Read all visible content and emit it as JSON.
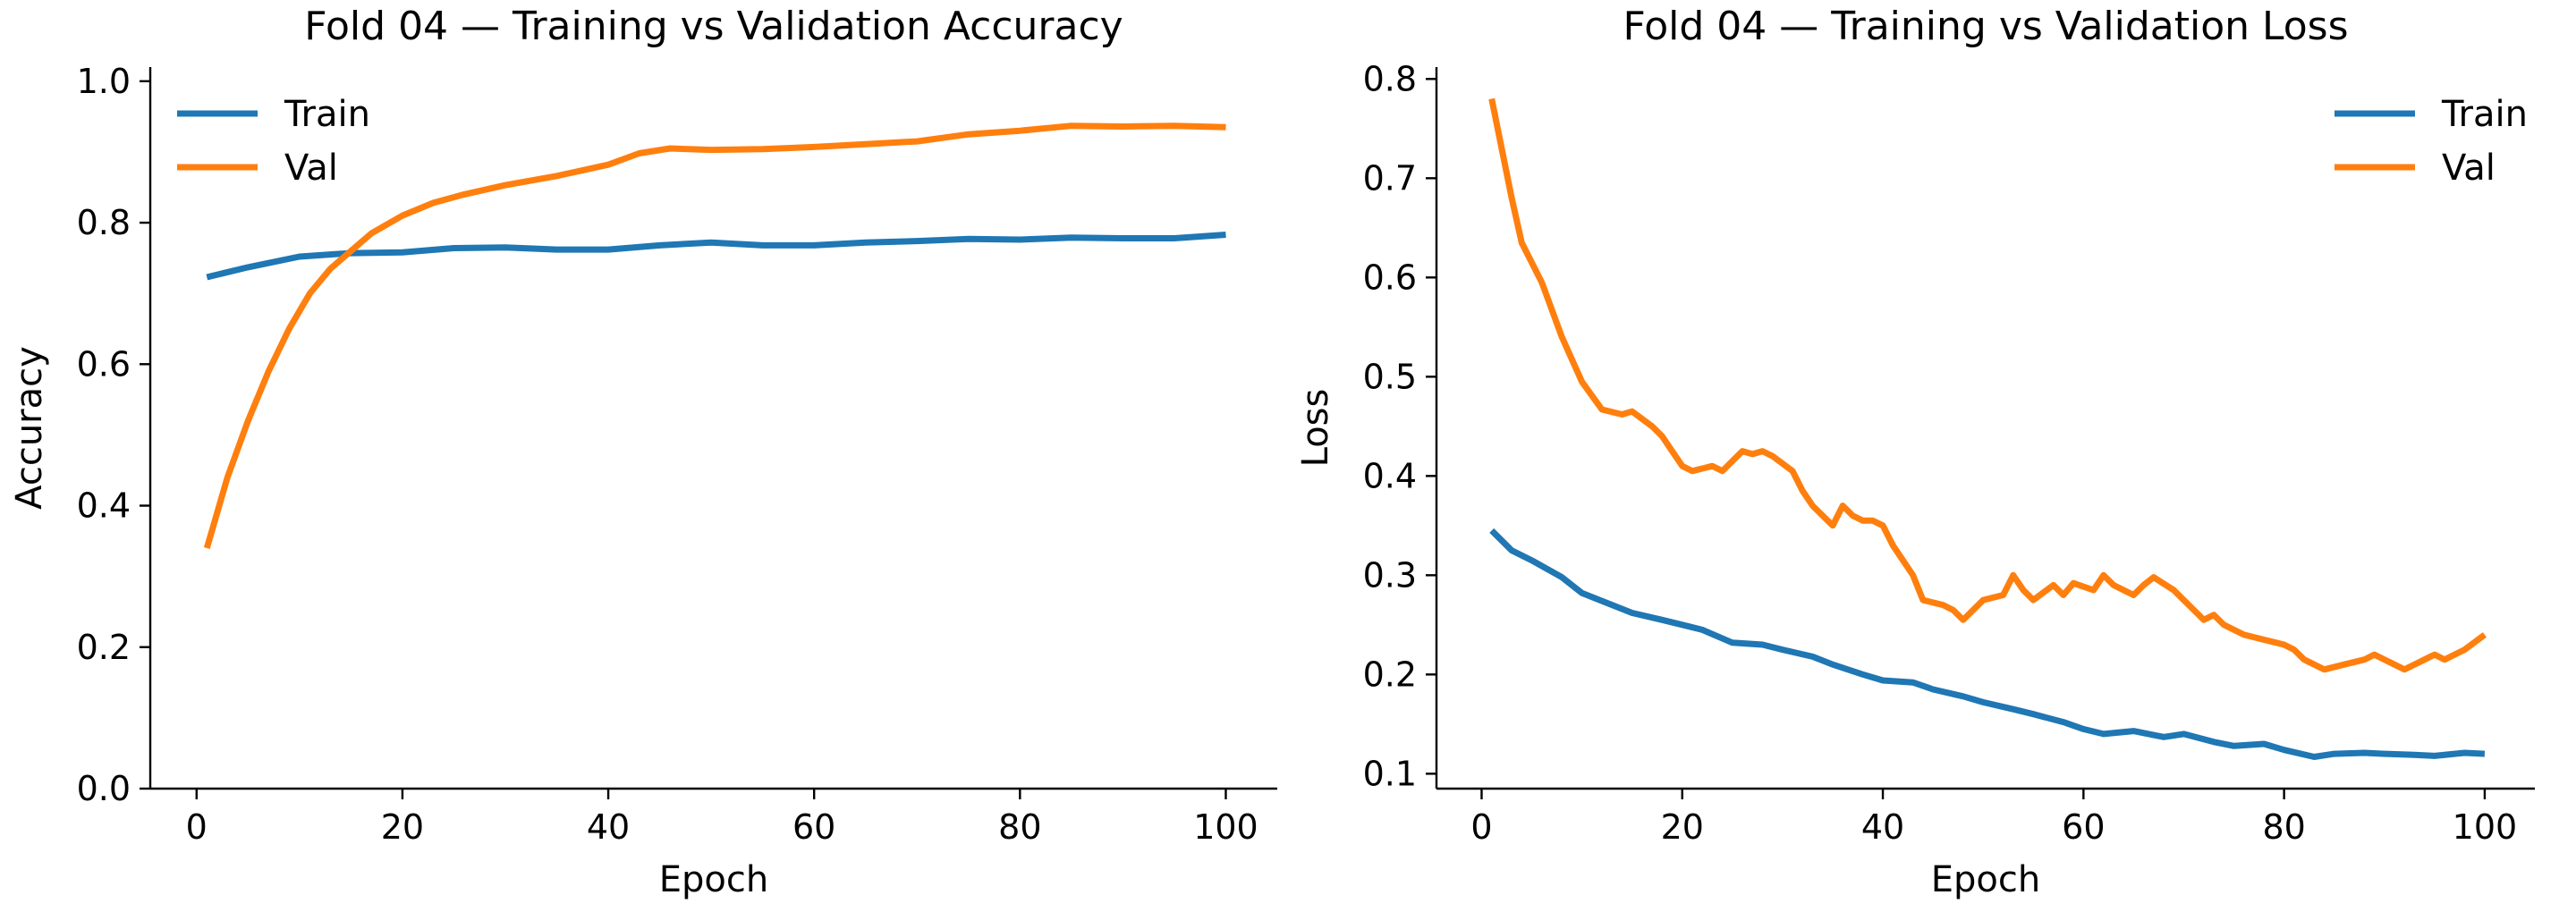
{
  "chart_data": [
    {
      "type": "line",
      "title": "Fold 04 — Training vs Validation Accuracy",
      "xlabel": "Epoch",
      "ylabel": "Accuracy",
      "xlim": [
        -4.5,
        105
      ],
      "ylim": [
        0.0,
        1.02
      ],
      "xticks": [
        0,
        20,
        40,
        60,
        80,
        100
      ],
      "yticks": [
        0.0,
        0.2,
        0.4,
        0.6,
        0.8,
        1.0
      ],
      "xtick_labels": [
        "0",
        "20",
        "40",
        "60",
        "80",
        "100"
      ],
      "ytick_labels": [
        "0.0",
        "0.2",
        "0.4",
        "0.6",
        "0.8",
        "1.0"
      ],
      "grid": false,
      "legend_position": "upper left",
      "colors": {
        "Train": "#1f77b4",
        "Val": "#ff7f0e"
      },
      "legend": [
        "Train",
        "Val"
      ],
      "series": [
        {
          "name": "Train",
          "x": [
            1,
            5,
            10,
            15,
            20,
            25,
            30,
            35,
            40,
            45,
            50,
            55,
            60,
            65,
            70,
            75,
            80,
            85,
            90,
            95,
            100
          ],
          "values": [
            0.723,
            0.737,
            0.752,
            0.757,
            0.758,
            0.764,
            0.765,
            0.762,
            0.762,
            0.768,
            0.772,
            0.768,
            0.768,
            0.772,
            0.774,
            0.777,
            0.776,
            0.779,
            0.778,
            0.778,
            0.783
          ]
        },
        {
          "name": "Val",
          "x": [
            1,
            3,
            5,
            7,
            9,
            11,
            13,
            15,
            17,
            20,
            23,
            26,
            30,
            35,
            40,
            43,
            46,
            50,
            55,
            60,
            65,
            70,
            75,
            80,
            85,
            90,
            95,
            100
          ],
          "values": [
            0.34,
            0.44,
            0.52,
            0.59,
            0.65,
            0.7,
            0.735,
            0.76,
            0.785,
            0.81,
            0.828,
            0.84,
            0.853,
            0.866,
            0.882,
            0.898,
            0.905,
            0.903,
            0.904,
            0.907,
            0.911,
            0.915,
            0.925,
            0.93,
            0.937,
            0.936,
            0.937,
            0.935
          ]
        }
      ]
    },
    {
      "type": "line",
      "title": "Fold 04 — Training vs Validation Loss",
      "xlabel": "Epoch",
      "ylabel": "Loss",
      "xlim": [
        -4.5,
        105
      ],
      "ylim": [
        0.085,
        0.812
      ],
      "xticks": [
        0,
        20,
        40,
        60,
        80,
        100
      ],
      "yticks": [
        0.1,
        0.2,
        0.3,
        0.4,
        0.5,
        0.6,
        0.7,
        0.8
      ],
      "xtick_labels": [
        "0",
        "20",
        "40",
        "60",
        "80",
        "100"
      ],
      "ytick_labels": [
        "0.1",
        "0.2",
        "0.3",
        "0.4",
        "0.5",
        "0.6",
        "0.7",
        "0.8"
      ],
      "grid": false,
      "legend_position": "upper right",
      "colors": {
        "Train": "#1f77b4",
        "Val": "#ff7f0e"
      },
      "legend": [
        "Train",
        "Val"
      ],
      "series": [
        {
          "name": "Train",
          "x": [
            1,
            3,
            5,
            8,
            10,
            13,
            15,
            18,
            20,
            22,
            25,
            28,
            30,
            33,
            35,
            38,
            40,
            43,
            45,
            48,
            50,
            53,
            55,
            58,
            60,
            62,
            65,
            68,
            70,
            73,
            75,
            78,
            80,
            83,
            85,
            88,
            90,
            93,
            95,
            98,
            100
          ],
          "values": [
            0.345,
            0.325,
            0.315,
            0.298,
            0.282,
            0.27,
            0.262,
            0.255,
            0.25,
            0.245,
            0.232,
            0.23,
            0.225,
            0.218,
            0.21,
            0.2,
            0.194,
            0.192,
            0.185,
            0.178,
            0.172,
            0.165,
            0.16,
            0.152,
            0.145,
            0.14,
            0.143,
            0.137,
            0.14,
            0.132,
            0.128,
            0.13,
            0.124,
            0.117,
            0.12,
            0.121,
            0.12,
            0.119,
            0.118,
            0.121,
            0.12
          ]
        },
        {
          "name": "Val",
          "x": [
            1,
            2,
            3,
            4,
            6,
            8,
            10,
            12,
            14,
            15,
            17,
            18,
            19,
            20,
            21,
            23,
            24,
            26,
            27,
            28,
            29,
            31,
            32,
            33,
            35,
            36,
            37,
            38,
            39,
            40,
            41,
            43,
            44,
            46,
            47,
            48,
            50,
            52,
            53,
            54,
            55,
            57,
            58,
            59,
            61,
            62,
            63,
            64,
            65,
            66,
            67,
            69,
            70,
            71,
            72,
            73,
            74,
            75,
            76,
            78,
            80,
            81,
            82,
            83,
            84,
            86,
            88,
            89,
            90,
            91,
            92,
            93,
            94,
            95,
            96,
            97,
            98,
            100
          ],
          "values": [
            0.78,
            0.73,
            0.68,
            0.635,
            0.595,
            0.54,
            0.495,
            0.467,
            0.462,
            0.465,
            0.45,
            0.44,
            0.425,
            0.41,
            0.405,
            0.41,
            0.405,
            0.425,
            0.422,
            0.425,
            0.42,
            0.405,
            0.385,
            0.37,
            0.35,
            0.37,
            0.36,
            0.355,
            0.355,
            0.35,
            0.33,
            0.3,
            0.275,
            0.27,
            0.265,
            0.255,
            0.275,
            0.28,
            0.3,
            0.285,
            0.275,
            0.29,
            0.28,
            0.292,
            0.285,
            0.3,
            0.29,
            0.285,
            0.28,
            0.29,
            0.298,
            0.285,
            0.275,
            0.265,
            0.255,
            0.26,
            0.25,
            0.245,
            0.24,
            0.235,
            0.23,
            0.225,
            0.215,
            0.21,
            0.205,
            0.21,
            0.215,
            0.22,
            0.215,
            0.21,
            0.205,
            0.21,
            0.215,
            0.22,
            0.215,
            0.22,
            0.225,
            0.24
          ]
        }
      ]
    }
  ]
}
